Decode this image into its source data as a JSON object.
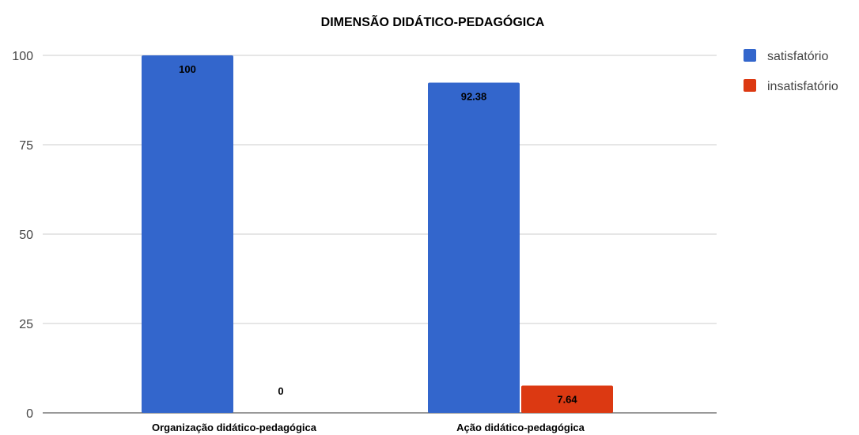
{
  "chart_data": {
    "type": "bar",
    "title": "DIMENSÃO DIDÁTICO-PEDAGÓGICA",
    "categories": [
      "Organização didático-pedagógica",
      "Ação didático-pedagógica"
    ],
    "series": [
      {
        "name": "satisfatório",
        "color": "#3366cc",
        "values": [
          100,
          92.38
        ],
        "labels": [
          "100",
          "92.38"
        ]
      },
      {
        "name": "insatisfatório",
        "color": "#dc3912",
        "values": [
          0,
          7.64
        ],
        "labels": [
          "0",
          "7.64"
        ]
      }
    ],
    "yticks": [
      "0",
      "25",
      "50",
      "75",
      "100"
    ],
    "ylim": [
      0,
      100
    ],
    "grid": true,
    "legend_position": "right",
    "xlabel": "",
    "ylabel": ""
  }
}
